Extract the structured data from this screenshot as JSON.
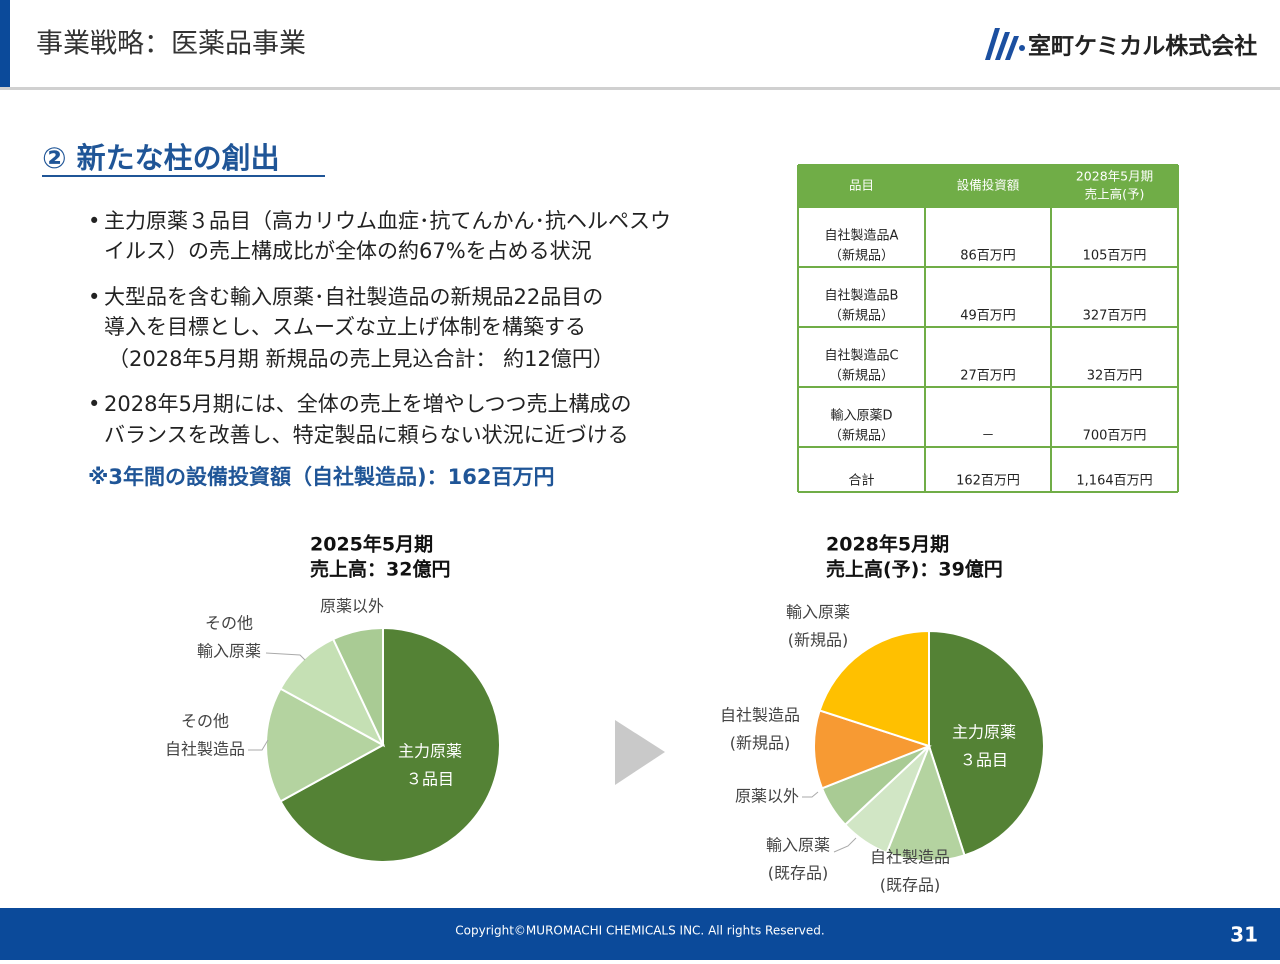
{
  "header": {
    "title": "事業戦略：医薬品事業",
    "logo": "室町ケミカル株式会社"
  },
  "section": {
    "heading": "② 新たな柱の創出",
    "bullets": [
      [
        "主力原薬３品目（高カリウム血症･抗てんかん･抗ヘルペスウ",
        "イルス）の売上構成比が全体の約67%を占める状況"
      ],
      [
        "大型品を含む輸入原薬･自社製造品の新規品22品目の",
        "導入を目標とし、スムーズな立上げ体制を構築する",
        "（2028年5月期 新規品の売上見込合計： 約12億円）"
      ],
      [
        "2028年5月期には、全体の売上を増やしつつ売上構成の",
        "バランスを改善し、特定製品に頼らない状況に近づける"
      ]
    ],
    "note": "※3年間の設備投資額（自社製造品)：162百万円"
  },
  "table": {
    "header": [
      [
        "品目"
      ],
      [
        "設備投資額"
      ],
      [
        "2028年5月期",
        "売上高(予)"
      ]
    ],
    "rows": [
      [
        [
          "自社製造品A",
          "（新規品）"
        ],
        [
          "86百万円"
        ],
        [
          "105百万円"
        ]
      ],
      [
        [
          "自社製造品B",
          "（新規品）"
        ],
        [
          "49百万円"
        ],
        [
          "327百万円"
        ]
      ],
      [
        [
          "自社製造品C",
          "（新規品）"
        ],
        [
          "27百万円"
        ],
        [
          "32百万円"
        ]
      ],
      [
        [
          "輸入原薬D",
          "（新規品）"
        ],
        [
          "－"
        ],
        [
          "700百万円"
        ]
      ],
      [
        [
          "合計"
        ],
        [
          "162百万円"
        ],
        [
          "1,164百万円"
        ]
      ]
    ]
  },
  "chart_data": [
    {
      "type": "pie",
      "title": "2025年5月期",
      "subtitle": "売上高：32億円",
      "categories": [
        [
          "主力原薬",
          "３品目"
        ],
        [
          "その他",
          "自社製造品"
        ],
        [
          "その他",
          "輸入原薬"
        ],
        [
          "原薬以外"
        ]
      ],
      "values": [
        67,
        16,
        10,
        7
      ],
      "colors": [
        "#548235",
        "#b4d3a0",
        "#c5e0b4",
        "#a9cb94"
      ]
    },
    {
      "type": "pie",
      "title": "2028年5月期",
      "subtitle": "売上高(予)：39億円",
      "categories": [
        [
          "主力原薬",
          "３品目"
        ],
        [
          "自社製造品",
          "(既存品)"
        ],
        [
          "輸入原薬",
          "(既存品)"
        ],
        [
          "原薬以外"
        ],
        [
          "自社製造品",
          "(新規品)"
        ],
        [
          "輸入原薬",
          "(新規品)"
        ]
      ],
      "values": [
        45,
        11,
        7,
        6,
        11,
        20
      ],
      "colors": [
        "#548235",
        "#b4d3a0",
        "#d1e6c5",
        "#a9cb94",
        "#f79a33",
        "#ffc000"
      ]
    }
  ],
  "footer": {
    "copyright": "Copyright©MUROMACHI CHEMICALS INC. All rights Reserved.",
    "page": "31"
  }
}
